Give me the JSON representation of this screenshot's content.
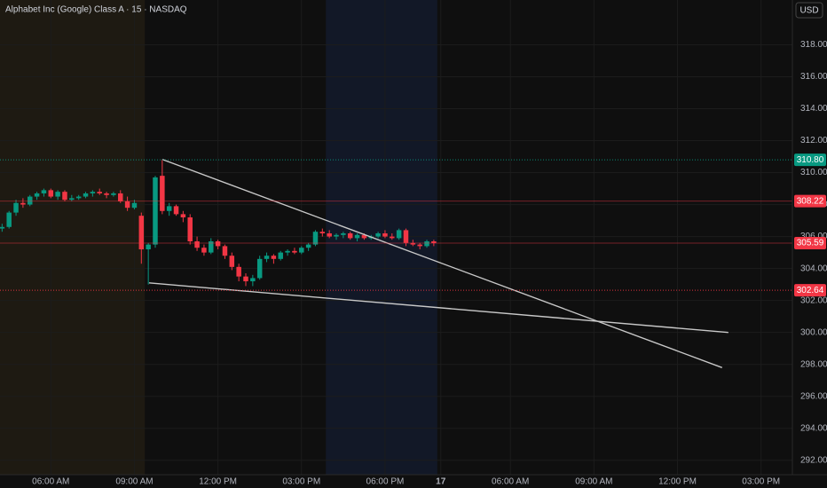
{
  "chart_data": {
    "type": "candlestick",
    "title": "Alphabet Inc (Google) Class A · 15 · NASDAQ",
    "currency": "USD",
    "up_color": "#089981",
    "down_color": "#f23645",
    "xlim": [
      -7.3,
      106.5
    ],
    "ylim": [
      291.1,
      320.8
    ],
    "xticks": [
      {
        "value": 0,
        "label": "06:00 AM"
      },
      {
        "value": 12,
        "label": "09:00 AM"
      },
      {
        "value": 24,
        "label": "12:00 PM"
      },
      {
        "value": 36,
        "label": "03:00 PM"
      },
      {
        "value": 48,
        "label": "06:00 PM"
      },
      {
        "value": 56,
        "label": "17"
      },
      {
        "value": 66,
        "label": "06:00 AM"
      },
      {
        "value": 78,
        "label": "09:00 AM"
      },
      {
        "value": 90,
        "label": "12:00 PM"
      },
      {
        "value": 102,
        "label": "03:00 PM"
      }
    ],
    "yticks": [
      {
        "value": 292,
        "label": "292.00"
      },
      {
        "value": 294,
        "label": "294.00"
      },
      {
        "value": 296,
        "label": "296.00"
      },
      {
        "value": 298,
        "label": "298.00"
      },
      {
        "value": 300,
        "label": "300.00"
      },
      {
        "value": 302,
        "label": "302.00"
      },
      {
        "value": 304,
        "label": "304.00"
      },
      {
        "value": 306,
        "label": "306.00"
      },
      {
        "value": 308,
        "label": "308.00"
      },
      {
        "value": 310,
        "label": "310.00"
      },
      {
        "value": 312,
        "label": "312.00"
      },
      {
        "value": 314,
        "label": "314.00"
      },
      {
        "value": 316,
        "label": "316.00"
      },
      {
        "value": 318,
        "label": "318.00"
      }
    ],
    "grid": true,
    "sessions": [
      {
        "start": -7.3,
        "end": 13.5,
        "color": "#1e1a12"
      },
      {
        "start": 39.5,
        "end": 55.5,
        "color": "#121827"
      }
    ],
    "x": [
      -7,
      -6,
      -5,
      -4,
      -3,
      -2,
      -1,
      0,
      1,
      2,
      3,
      4,
      5,
      6,
      7,
      8,
      9,
      10,
      11,
      12,
      13,
      14,
      15,
      16,
      17,
      18,
      19,
      20,
      21,
      22,
      23,
      24,
      25,
      26,
      27,
      28,
      29,
      30,
      31,
      32,
      33,
      34,
      35,
      36,
      37,
      38,
      39,
      40,
      41,
      42,
      43,
      44,
      45,
      46,
      47,
      48,
      49,
      50,
      51,
      52,
      53,
      54,
      55
    ],
    "open": [
      306.5,
      306.6,
      307.5,
      308.1,
      308.0,
      308.5,
      308.7,
      308.9,
      308.5,
      308.8,
      308.3,
      308.4,
      308.5,
      308.7,
      308.8,
      308.7,
      308.6,
      308.7,
      308.2,
      307.8,
      307.3,
      305.2,
      305.5,
      309.8,
      307.6,
      307.9,
      307.4,
      307.2,
      305.7,
      305.3,
      305.0,
      305.7,
      305.4,
      304.8,
      304.1,
      303.5,
      303.2,
      303.4,
      304.6,
      304.8,
      304.6,
      305.0,
      305.1,
      305.0,
      305.3,
      305.5,
      306.3,
      306.2,
      306.0,
      306.1,
      306.2,
      305.9,
      306.1,
      305.9,
      306.0,
      306.2,
      306.0,
      305.9,
      306.4,
      305.6,
      305.5,
      305.4,
      305.7
    ],
    "high": [
      306.8,
      307.6,
      308.3,
      308.4,
      308.6,
      308.8,
      309.0,
      309.0,
      308.9,
      308.9,
      308.6,
      308.6,
      308.8,
      308.9,
      309.0,
      308.8,
      308.8,
      308.9,
      308.5,
      308.3,
      307.5,
      305.6,
      309.8,
      310.8,
      308.1,
      308.0,
      307.6,
      307.4,
      306.0,
      305.5,
      305.9,
      305.8,
      305.5,
      305.0,
      304.3,
      303.7,
      303.6,
      304.8,
      305.0,
      304.9,
      305.1,
      305.2,
      305.3,
      305.4,
      305.6,
      306.4,
      306.5,
      306.4,
      306.2,
      306.3,
      306.3,
      306.2,
      306.2,
      306.1,
      306.3,
      306.4,
      306.2,
      306.5,
      306.5,
      305.8,
      305.6,
      305.8,
      305.8
    ],
    "low": [
      306.3,
      306.5,
      307.3,
      307.8,
      307.9,
      308.3,
      308.5,
      308.4,
      308.3,
      308.2,
      308.2,
      308.3,
      308.4,
      308.5,
      308.6,
      308.4,
      308.5,
      308.1,
      307.6,
      307.7,
      304.3,
      303.0,
      305.3,
      307.4,
      307.3,
      307.3,
      306.9,
      305.5,
      305.1,
      304.8,
      304.9,
      305.2,
      304.6,
      303.9,
      303.2,
      302.9,
      302.9,
      303.3,
      304.4,
      304.3,
      304.5,
      304.8,
      304.9,
      304.9,
      305.1,
      305.4,
      306.0,
      305.9,
      305.8,
      305.9,
      305.8,
      305.7,
      305.8,
      305.8,
      305.9,
      305.9,
      305.8,
      305.8,
      305.4,
      305.4,
      305.2,
      305.3,
      305.4
    ],
    "close": [
      306.6,
      307.5,
      308.1,
      308.0,
      308.5,
      308.7,
      308.9,
      308.5,
      308.8,
      308.3,
      308.4,
      308.5,
      308.7,
      308.8,
      308.7,
      308.6,
      308.7,
      308.2,
      307.8,
      308.1,
      305.2,
      305.5,
      309.7,
      307.6,
      307.9,
      307.4,
      307.2,
      305.7,
      305.3,
      305.0,
      305.7,
      305.4,
      304.8,
      304.1,
      303.5,
      303.2,
      303.4,
      304.6,
      304.8,
      304.6,
      305.0,
      305.1,
      305.0,
      305.3,
      305.5,
      306.3,
      306.2,
      306.0,
      306.1,
      306.2,
      305.9,
      306.1,
      305.9,
      306.0,
      306.2,
      306.0,
      305.9,
      306.4,
      305.6,
      305.5,
      305.4,
      305.7,
      305.59
    ],
    "price_lines": [
      {
        "value": 310.8,
        "label": "310.80",
        "color": "#089981",
        "style": "dotted"
      },
      {
        "value": 308.22,
        "label": "308.22",
        "color": "#f23645",
        "style": "solid"
      },
      {
        "value": 305.59,
        "label": "305.59",
        "color": "#f23645",
        "style": "solid"
      },
      {
        "value": 302.64,
        "label": "302.64",
        "color": "#f23645",
        "style": "dotted"
      }
    ],
    "trendlines": [
      {
        "x": [
          16,
          96.4
        ],
        "y": [
          310.83,
          297.8
        ],
        "color": "#c8c8c8"
      },
      {
        "x": [
          14.1,
          97.3
        ],
        "y": [
          303.1,
          300.0
        ],
        "color": "#c8c8c8"
      }
    ]
  }
}
